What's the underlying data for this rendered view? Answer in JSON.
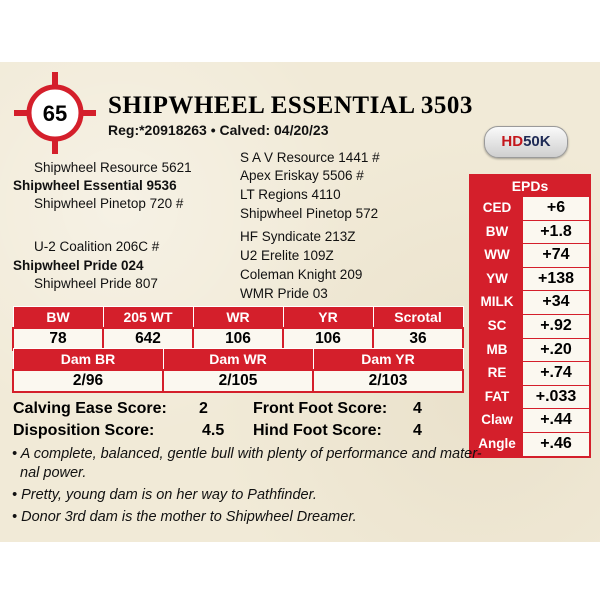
{
  "lot_number": "65",
  "title": "SHIPWHEEL ESSENTIAL 3503",
  "reg_line": "Reg:*20918263 • Calved: 04/20/23",
  "logo": {
    "hd": "HD",
    "k": "50K"
  },
  "pedigree_left": [
    "Shipwheel Resource 5621",
    "Shipwheel Essential 9536",
    "Shipwheel Pinetop 720 #",
    "U-2 Coalition 206C #",
    "Shipwheel Pride 024",
    "Shipwheel Pride 807"
  ],
  "pedigree_right": [
    "S A V Resource 1441 #",
    "Apex Eriskay 5506 #",
    "LT Regions 4110",
    "Shipwheel Pinetop 572",
    "HF Syndicate 213Z",
    "U2 Erelite 109Z",
    "Coleman Knight 209",
    "WMR Pride 03"
  ],
  "perf": {
    "headers": [
      "BW",
      "205 WT",
      "WR",
      "YR",
      "Scrotal"
    ],
    "values": [
      "78",
      "642",
      "106",
      "106",
      "36"
    ]
  },
  "dam": {
    "headers": [
      "Dam BR",
      "Dam WR",
      "Dam YR"
    ],
    "values": [
      "2/96",
      "2/105",
      "2/103"
    ]
  },
  "epds": {
    "title": "EPDs",
    "rows": [
      {
        "label": "CED",
        "value": "+6"
      },
      {
        "label": "BW",
        "value": "+1.8"
      },
      {
        "label": "WW",
        "value": "+74"
      },
      {
        "label": "YW",
        "value": "+138"
      },
      {
        "label": "MILK",
        "value": "+34"
      },
      {
        "label": "SC",
        "value": "+.92"
      },
      {
        "label": "MB",
        "value": "+.20"
      },
      {
        "label": "RE",
        "value": "+.74"
      },
      {
        "label": "FAT",
        "value": "+.033"
      },
      {
        "label": "Claw",
        "value": "+.44"
      },
      {
        "label": "Angle",
        "value": "+.46"
      }
    ]
  },
  "scores": {
    "calving_label": "Calving Ease Score:",
    "calving": "2",
    "front_label": "Front Foot Score:",
    "front": "4",
    "disposition_label": "Disposition Score:",
    "disposition": "4.5",
    "hind_label": "Hind Foot Score:",
    "hind": "4"
  },
  "notes": [
    "• A complete, balanced, gentle bull with plenty of performance and mater-",
    "nal power.",
    "• Pretty, young dam is on her way to Pathfinder.",
    "• Donor 3rd dam is the mother to Shipwheel Dreamer."
  ],
  "colors": {
    "accent_red": "#d41f2b",
    "card_bg": "#f1ead7"
  }
}
